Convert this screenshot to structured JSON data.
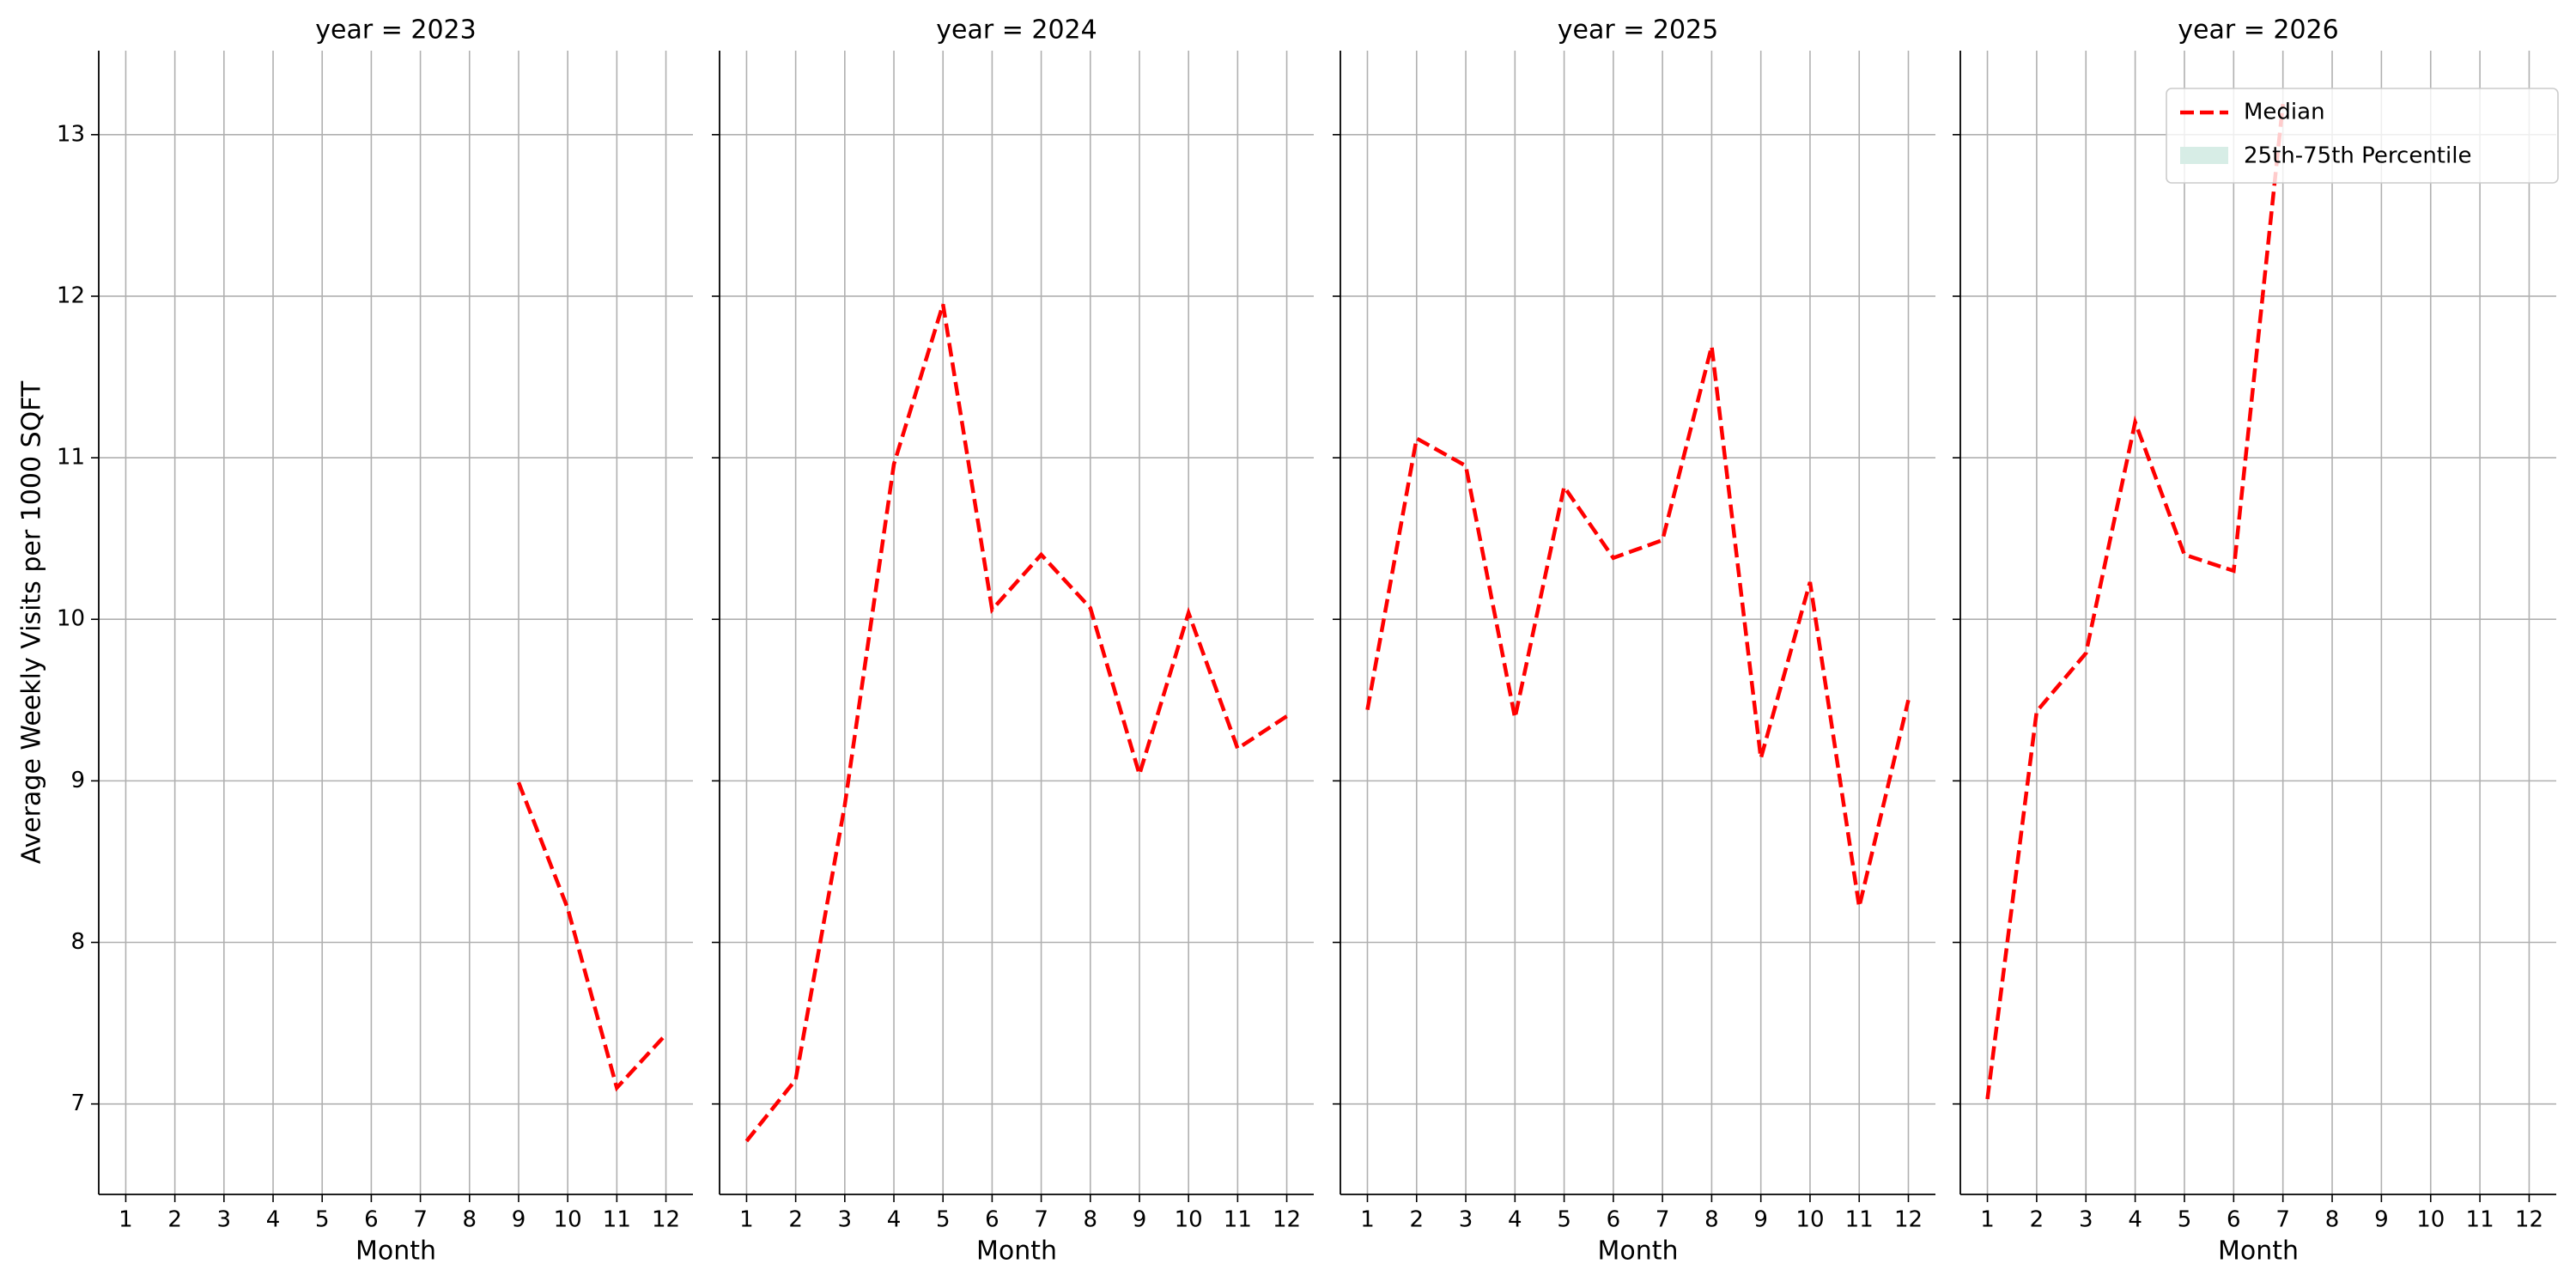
{
  "chart_data": [
    {
      "type": "line",
      "title": "year = 2023",
      "xlabel": "Month",
      "ylabel": "Average Weekly Visits per 1000 SQFT",
      "x": [
        1,
        2,
        3,
        4,
        5,
        6,
        7,
        8,
        9,
        10,
        11,
        12
      ],
      "series": [
        {
          "name": "Median",
          "color": "#ff0000",
          "dashed": true,
          "values": [
            null,
            null,
            null,
            null,
            null,
            null,
            null,
            null,
            8.99,
            8.21,
            7.1,
            7.43
          ]
        }
      ],
      "xlim": [
        0.45,
        12.55
      ],
      "ylim": [
        6.44,
        13.52
      ],
      "xticks": [
        1,
        2,
        3,
        4,
        5,
        6,
        7,
        8,
        9,
        10,
        11,
        12
      ],
      "yticks": [
        7,
        8,
        9,
        10,
        11,
        12,
        13
      ],
      "grid": true,
      "show_ytick_labels": true
    },
    {
      "type": "line",
      "title": "year = 2024",
      "xlabel": "Month",
      "x": [
        1,
        2,
        3,
        4,
        5,
        6,
        7,
        8,
        9,
        10,
        11,
        12
      ],
      "series": [
        {
          "name": "Median",
          "color": "#ff0000",
          "dashed": true,
          "values": [
            6.77,
            7.15,
            8.85,
            10.96,
            11.95,
            10.06,
            10.4,
            10.07,
            9.04,
            10.04,
            9.2,
            9.4
          ]
        }
      ],
      "xlim": [
        0.45,
        12.55
      ],
      "ylim": [
        6.44,
        13.52
      ],
      "xticks": [
        1,
        2,
        3,
        4,
        5,
        6,
        7,
        8,
        9,
        10,
        11,
        12
      ],
      "yticks": [
        7,
        8,
        9,
        10,
        11,
        12,
        13
      ],
      "grid": true,
      "show_ytick_labels": false
    },
    {
      "type": "line",
      "title": "year = 2025",
      "xlabel": "Month",
      "x": [
        1,
        2,
        3,
        4,
        5,
        6,
        7,
        8,
        9,
        10,
        11,
        12
      ],
      "series": [
        {
          "name": "Median",
          "color": "#ff0000",
          "dashed": true,
          "values": [
            9.44,
            11.12,
            10.95,
            9.39,
            10.82,
            10.38,
            10.49,
            11.69,
            9.14,
            10.23,
            8.22,
            9.5
          ]
        }
      ],
      "xlim": [
        0.45,
        12.55
      ],
      "ylim": [
        6.44,
        13.52
      ],
      "xticks": [
        1,
        2,
        3,
        4,
        5,
        6,
        7,
        8,
        9,
        10,
        11,
        12
      ],
      "yticks": [
        7,
        8,
        9,
        10,
        11,
        12,
        13
      ],
      "grid": true,
      "show_ytick_labels": false
    },
    {
      "type": "line",
      "title": "year = 2026",
      "xlabel": "Month",
      "x": [
        1,
        2,
        3,
        4,
        5,
        6,
        7,
        8,
        9,
        10,
        11,
        12
      ],
      "series": [
        {
          "name": "Median",
          "color": "#ff0000",
          "dashed": true,
          "values": [
            7.03,
            9.43,
            9.79,
            11.22,
            10.4,
            10.3,
            13.19,
            null,
            null,
            null,
            null,
            null
          ]
        }
      ],
      "band_legend": {
        "name": "25th-75th Percentile",
        "color": "#d7ede6"
      },
      "legend": "upper right",
      "xlim": [
        0.45,
        12.55
      ],
      "ylim": [
        6.44,
        13.52
      ],
      "xticks": [
        1,
        2,
        3,
        4,
        5,
        6,
        7,
        8,
        9,
        10,
        11,
        12
      ],
      "yticks": [
        7,
        8,
        9,
        10,
        11,
        12,
        13
      ],
      "grid": true,
      "show_ytick_labels": false
    }
  ]
}
